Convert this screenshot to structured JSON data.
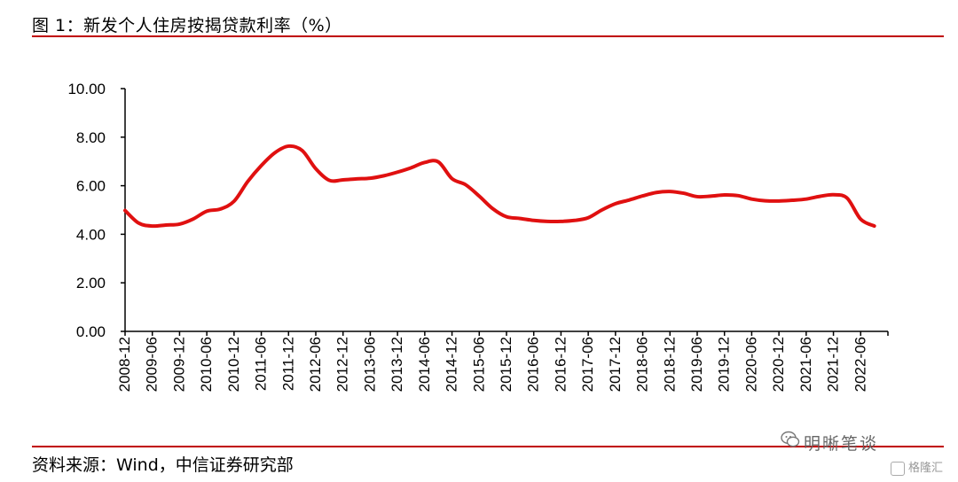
{
  "title": "图 1：新发个人住房按揭贷款利率（%）",
  "source": "资料来源：Wind，中信证券研究部",
  "watermark": "明晰笔谈",
  "corner_logo": "格隆汇",
  "colors": {
    "line": "#e01010",
    "rule": "#c00000",
    "axis": "#000000"
  },
  "chart_data": {
    "type": "line",
    "title": "图 1：新发个人住房按揭贷款利率（%）",
    "xlabel": "",
    "ylabel": "",
    "ylim": [
      0,
      10
    ],
    "yticks": [
      0,
      2,
      4,
      6,
      8,
      10
    ],
    "yticklabels": [
      "0.00",
      "2.00",
      "4.00",
      "6.00",
      "8.00",
      "10.00"
    ],
    "grid": false,
    "legend": "none",
    "xticklabels": [
      "2008-12",
      "2009-06",
      "2009-12",
      "2010-06",
      "2010-12",
      "2011-06",
      "2011-12",
      "2012-06",
      "2012-12",
      "2013-06",
      "2013-12",
      "2014-06",
      "2014-12",
      "2015-06",
      "2015-12",
      "2016-06",
      "2016-12",
      "2017-06",
      "2017-12",
      "2018-06",
      "2018-12",
      "2019-06",
      "2019-12",
      "2020-06",
      "2020-12",
      "2021-06",
      "2021-12",
      "2022-06"
    ],
    "x": [
      "2008-12",
      "2009-03",
      "2009-06",
      "2009-09",
      "2009-12",
      "2010-03",
      "2010-06",
      "2010-09",
      "2010-12",
      "2011-03",
      "2011-06",
      "2011-09",
      "2011-12",
      "2012-03",
      "2012-06",
      "2012-09",
      "2012-12",
      "2013-03",
      "2013-06",
      "2013-09",
      "2013-12",
      "2014-03",
      "2014-06",
      "2014-09",
      "2014-12",
      "2015-03",
      "2015-06",
      "2015-09",
      "2015-12",
      "2016-03",
      "2016-06",
      "2016-09",
      "2016-12",
      "2017-03",
      "2017-06",
      "2017-09",
      "2017-12",
      "2018-03",
      "2018-06",
      "2018-09",
      "2018-12",
      "2019-03",
      "2019-06",
      "2019-09",
      "2019-12",
      "2020-03",
      "2020-06",
      "2020-09",
      "2020-12",
      "2021-03",
      "2021-06",
      "2021-09",
      "2021-12",
      "2022-03",
      "2022-06",
      "2022-09"
    ],
    "series": [
      {
        "values": [
          4.98,
          4.46,
          4.34,
          4.38,
          4.42,
          4.63,
          4.95,
          5.04,
          5.36,
          6.17,
          6.83,
          7.36,
          7.63,
          7.45,
          6.7,
          6.22,
          6.24,
          6.28,
          6.31,
          6.41,
          6.56,
          6.74,
          6.96,
          6.98,
          6.29,
          6.04,
          5.57,
          5.05,
          4.72,
          4.65,
          4.57,
          4.53,
          4.53,
          4.57,
          4.68,
          5.0,
          5.26,
          5.41,
          5.58,
          5.72,
          5.76,
          5.69,
          5.55,
          5.57,
          5.62,
          5.59,
          5.45,
          5.38,
          5.37,
          5.4,
          5.45,
          5.56,
          5.63,
          5.49,
          4.62,
          4.34
        ]
      }
    ]
  }
}
